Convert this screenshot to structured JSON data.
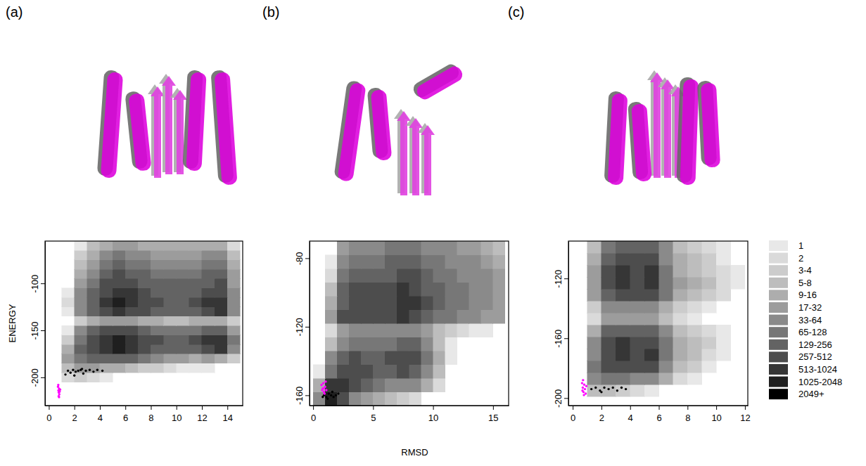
{
  "chart_data": [
    {
      "type": "heatmap",
      "label": "(a)",
      "y_label": "ENERGY",
      "xlim": [
        -0.3,
        15.2
      ],
      "ylim": [
        -230,
        -55
      ],
      "xticks": [
        0,
        2,
        4,
        6,
        8,
        10,
        12,
        14
      ],
      "yticks": [
        -200,
        -150,
        -100
      ],
      "xbins": [
        0,
        1,
        2,
        3,
        4,
        5,
        6,
        7,
        8,
        9,
        10,
        11,
        12,
        13,
        14,
        15
      ],
      "ybins": [
        -205,
        -195,
        -185,
        -175,
        -165,
        -155,
        -145,
        -135,
        -125,
        -115,
        -105,
        -95,
        -85,
        -75,
        -65,
        -55
      ],
      "counts": [
        [
          0,
          2,
          3,
          2,
          1,
          0,
          0,
          0,
          0,
          0,
          0,
          0,
          0,
          0,
          0
        ],
        [
          0,
          8,
          20,
          20,
          15,
          10,
          6,
          4,
          3,
          2,
          1,
          1,
          1,
          0,
          0
        ],
        [
          0,
          20,
          80,
          150,
          200,
          220,
          150,
          80,
          50,
          30,
          20,
          15,
          20,
          15,
          4
        ],
        [
          0,
          10,
          150,
          400,
          700,
          1200,
          800,
          400,
          250,
          200,
          180,
          250,
          500,
          600,
          60
        ],
        [
          0,
          4,
          120,
          400,
          900,
          1500,
          1000,
          500,
          300,
          250,
          250,
          300,
          600,
          700,
          80
        ],
        [
          0,
          1,
          40,
          150,
          300,
          500,
          350,
          200,
          120,
          100,
          100,
          120,
          200,
          250,
          30
        ],
        [
          0,
          0,
          4,
          10,
          20,
          30,
          20,
          15,
          10,
          8,
          8,
          10,
          15,
          15,
          3
        ],
        [
          0,
          1,
          40,
          150,
          400,
          700,
          500,
          300,
          200,
          180,
          180,
          250,
          500,
          600,
          50
        ],
        [
          0,
          2,
          60,
          250,
          700,
          1300,
          900,
          500,
          300,
          250,
          250,
          300,
          600,
          700,
          60
        ],
        [
          0,
          1,
          50,
          200,
          500,
          900,
          600,
          350,
          250,
          200,
          200,
          250,
          400,
          450,
          40
        ],
        [
          0,
          0,
          30,
          120,
          300,
          500,
          400,
          250,
          180,
          150,
          150,
          180,
          250,
          300,
          30
        ],
        [
          0,
          0,
          15,
          60,
          150,
          300,
          250,
          150,
          120,
          100,
          100,
          120,
          150,
          150,
          20
        ],
        [
          0,
          0,
          6,
          30,
          80,
          150,
          120,
          80,
          60,
          50,
          50,
          60,
          80,
          80,
          10
        ],
        [
          0,
          0,
          3,
          15,
          40,
          80,
          60,
          40,
          30,
          25,
          25,
          30,
          40,
          40,
          5
        ],
        [
          0,
          0,
          1,
          6,
          15,
          30,
          25,
          15,
          12,
          10,
          10,
          12,
          15,
          15,
          2
        ]
      ],
      "series": [
        {
          "type": "scatter",
          "marker": "circle",
          "color": "#000000",
          "x": [
            1.3,
            1.5,
            1.7,
            1.9,
            2.1,
            2.3,
            2.5,
            2.7,
            2.9,
            3.2,
            3.5,
            3.8,
            4.2,
            2.0,
            2.6
          ],
          "values": [
            -197,
            -193,
            -195,
            -192,
            -194,
            -193,
            -192,
            -196,
            -193,
            -192,
            -194,
            -192,
            -193,
            -198,
            -191
          ]
        },
        {
          "type": "scatter",
          "marker": "circle",
          "color": "#ff00ff",
          "x": [
            0.72,
            0.75,
            0.78,
            0.8,
            0.82,
            0.85,
            0.77,
            0.88,
            0.74,
            0.8
          ],
          "values": [
            -210,
            -214,
            -216,
            -212,
            -218,
            -215,
            -220,
            -213,
            -208,
            -221
          ]
        }
      ]
    },
    {
      "type": "heatmap",
      "label": "(b)",
      "x_label": "RMSD",
      "xlim": [
        -0.3,
        16.3
      ],
      "ylim": [
        -166,
        -70
      ],
      "xticks": [
        0,
        5,
        10,
        15
      ],
      "yticks": [
        -160,
        -120,
        -80
      ],
      "xbins": [
        0,
        1,
        2,
        3,
        4,
        5,
        6,
        7,
        8,
        9,
        10,
        11,
        12,
        13,
        14,
        15,
        16
      ],
      "ybins": [
        -166,
        -158,
        -150,
        -142,
        -134,
        -126,
        -118,
        -110,
        -102,
        -94,
        -86,
        -78,
        -70
      ],
      "counts": [
        [
          60,
          1500,
          300,
          60,
          20,
          10,
          5,
          3,
          2,
          0,
          0,
          0,
          0,
          0,
          0,
          0
        ],
        [
          10,
          600,
          600,
          300,
          150,
          80,
          60,
          60,
          40,
          10,
          2,
          0,
          0,
          0,
          0,
          0
        ],
        [
          1,
          100,
          400,
          400,
          300,
          200,
          250,
          350,
          250,
          60,
          8,
          0,
          0,
          0,
          0,
          0
        ],
        [
          0,
          40,
          200,
          300,
          250,
          200,
          300,
          500,
          350,
          80,
          10,
          1,
          0,
          0,
          0,
          0
        ],
        [
          0,
          8,
          60,
          100,
          100,
          80,
          120,
          200,
          150,
          40,
          5,
          1,
          0,
          0,
          0,
          0
        ],
        [
          0,
          2,
          20,
          40,
          40,
          40,
          50,
          60,
          50,
          20,
          8,
          4,
          2,
          1,
          1,
          0
        ],
        [
          0,
          20,
          300,
          500,
          400,
          300,
          400,
          600,
          500,
          250,
          120,
          80,
          50,
          40,
          30,
          20
        ],
        [
          0,
          10,
          250,
          450,
          400,
          350,
          500,
          800,
          600,
          300,
          150,
          100,
          80,
          60,
          50,
          30
        ],
        [
          0,
          5,
          150,
          300,
          300,
          300,
          400,
          600,
          450,
          250,
          150,
          100,
          80,
          60,
          50,
          30
        ],
        [
          0,
          2,
          80,
          150,
          200,
          200,
          250,
          350,
          300,
          180,
          120,
          80,
          60,
          50,
          40,
          25
        ],
        [
          0,
          1,
          40,
          80,
          100,
          120,
          150,
          200,
          180,
          120,
          80,
          60,
          45,
          35,
          30,
          15
        ],
        [
          0,
          0,
          20,
          40,
          50,
          60,
          80,
          100,
          90,
          60,
          45,
          35,
          25,
          20,
          15,
          8
        ]
      ],
      "series": [
        {
          "type": "scatter",
          "marker": "circle",
          "color": "#000000",
          "x": [
            0.9,
            1.1,
            1.3,
            1.5,
            1.7,
            1.9,
            2.1,
            1.2,
            1.6,
            0.8
          ],
          "values": [
            -160,
            -161,
            -159,
            -160,
            -161,
            -160,
            -159,
            -162,
            -158,
            -161
          ]
        },
        {
          "type": "scatter",
          "marker": "circle",
          "color": "#ff00ff",
          "x": [
            0.7,
            0.8,
            0.9,
            1.0,
            1.1,
            0.85,
            0.95,
            0.75,
            1.05,
            0.9
          ],
          "values": [
            -154,
            -156,
            -158,
            -155,
            -157,
            -153,
            -159,
            -157,
            -152,
            -156
          ]
        }
      ]
    },
    {
      "type": "heatmap",
      "label": "(c)",
      "legend": "right",
      "xlim": [
        -0.3,
        12.2
      ],
      "ylim": [
        -205,
        -95
      ],
      "xticks": [
        0,
        2,
        4,
        6,
        8,
        10,
        12
      ],
      "yticks": [
        -200,
        -160,
        -120
      ],
      "xbins": [
        0,
        1,
        2,
        3,
        4,
        5,
        6,
        7,
        8,
        9,
        10,
        11,
        12
      ],
      "ybins": [
        -199,
        -191,
        -183,
        -175,
        -167,
        -159,
        -151,
        -143,
        -135,
        -127,
        -119,
        -111,
        -103,
        -95
      ],
      "counts": [
        [
          0,
          5,
          8,
          4,
          2,
          1,
          0,
          0,
          0,
          0,
          0,
          0
        ],
        [
          0,
          40,
          100,
          100,
          60,
          40,
          10,
          2,
          1,
          0,
          0,
          0
        ],
        [
          0,
          80,
          300,
          400,
          300,
          300,
          60,
          8,
          3,
          1,
          0,
          0
        ],
        [
          0,
          60,
          400,
          700,
          500,
          600,
          100,
          15,
          5,
          2,
          1,
          0
        ],
        [
          0,
          40,
          300,
          600,
          400,
          500,
          80,
          12,
          6,
          3,
          1,
          0
        ],
        [
          0,
          15,
          150,
          250,
          200,
          250,
          40,
          8,
          4,
          2,
          1,
          0
        ],
        [
          0,
          2,
          20,
          30,
          25,
          30,
          6,
          2,
          1,
          0,
          0,
          0
        ],
        [
          0,
          3,
          40,
          60,
          50,
          60,
          10,
          3,
          2,
          1,
          0,
          0
        ],
        [
          0,
          20,
          250,
          500,
          350,
          500,
          80,
          15,
          8,
          4,
          2,
          0
        ],
        [
          0,
          30,
          400,
          800,
          500,
          800,
          120,
          20,
          10,
          5,
          2,
          1
        ],
        [
          0,
          20,
          300,
          600,
          400,
          600,
          100,
          15,
          8,
          4,
          2,
          1
        ],
        [
          0,
          10,
          200,
          400,
          300,
          400,
          60,
          10,
          6,
          3,
          1,
          0
        ],
        [
          0,
          5,
          120,
          250,
          200,
          250,
          40,
          6,
          4,
          2,
          1,
          0
        ]
      ],
      "series": [
        {
          "type": "scatter",
          "marker": "circle",
          "color": "#000000",
          "x": [
            1.3,
            1.6,
            1.9,
            2.2,
            2.5,
            2.8,
            3.1,
            3.4,
            3.7,
            2.0
          ],
          "values": [
            -194,
            -193,
            -195,
            -193,
            -194,
            -193,
            -195,
            -193,
            -194,
            -196
          ]
        },
        {
          "type": "scatter",
          "marker": "circle",
          "color": "#ff00ff",
          "x": [
            0.65,
            0.7,
            0.75,
            0.8,
            0.85,
            0.9,
            0.72,
            0.78,
            0.95,
            0.68
          ],
          "values": [
            -190,
            -193,
            -196,
            -191,
            -194,
            -197,
            -188,
            -198,
            -192,
            -195
          ]
        }
      ],
      "color_bar": {
        "levels": [
          {
            "label": "1",
            "min": 1,
            "max": 1,
            "color": "#e8e8e8"
          },
          {
            "label": "2",
            "min": 2,
            "max": 2,
            "color": "#dadada"
          },
          {
            "label": "3-4",
            "min": 3,
            "max": 4,
            "color": "#cccccc"
          },
          {
            "label": "5-8",
            "min": 5,
            "max": 8,
            "color": "#bdbdbd"
          },
          {
            "label": "9-16",
            "min": 9,
            "max": 16,
            "color": "#adadad"
          },
          {
            "label": "17-32",
            "min": 17,
            "max": 32,
            "color": "#9c9c9c"
          },
          {
            "label": "33-64",
            "min": 33,
            "max": 64,
            "color": "#8a8a8a"
          },
          {
            "label": "65-128",
            "min": 65,
            "max": 128,
            "color": "#777777"
          },
          {
            "label": "129-256",
            "min": 129,
            "max": 256,
            "color": "#636363"
          },
          {
            "label": "257-512",
            "min": 257,
            "max": 512,
            "color": "#4d4d4d"
          },
          {
            "label": "513-1024",
            "min": 513,
            "max": 1024,
            "color": "#363636"
          },
          {
            "label": "1025-2048",
            "min": 1025,
            "max": 2048,
            "color": "#1f1f1f"
          },
          {
            "label": "2049+",
            "min": 2049,
            "max": null,
            "color": "#000000"
          }
        ]
      }
    }
  ]
}
